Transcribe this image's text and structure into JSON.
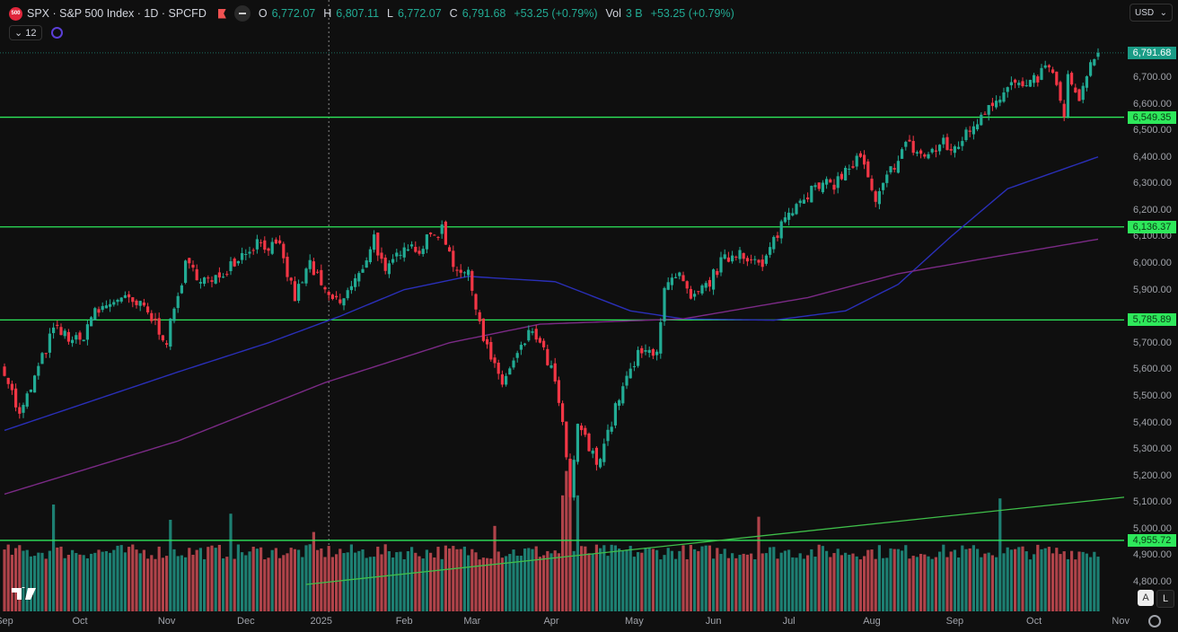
{
  "header": {
    "symbol_logo": "500",
    "title": "SPX · S&P 500 Index · 1D · SPCFD",
    "ohlc": [
      {
        "label": "O",
        "value": "6,772.07"
      },
      {
        "label": "H",
        "value": "6,807.11"
      },
      {
        "label": "L",
        "value": "6,772.07"
      },
      {
        "label": "C",
        "value": "6,791.68"
      }
    ],
    "change": "+53.25 (+0.79%)",
    "vol_label": "Vol",
    "vol_value": "3 B",
    "vol_change": "+53.25 (+0.79%)",
    "indicators_count": "12"
  },
  "currency": "USD",
  "colors": {
    "up": "#22ab94",
    "down": "#f23645",
    "level": "#2ee85b",
    "ma_fast": "#2a2fb8",
    "ma_slow": "#7b2a86",
    "trend": "#3fbf4a"
  },
  "axis_labels": [
    "6,700.00",
    "6,600.00",
    "6,500.00",
    "6,400.00",
    "6,300.00",
    "6,200.00",
    "6,100.00",
    "6,000.00",
    "5,900.00",
    "5,700.00",
    "5,600.00",
    "5,500.00",
    "5,400.00",
    "5,300.00",
    "5,200.00",
    "5,100.00",
    "5,000.00",
    "4,900.00",
    "4,800.00"
  ],
  "scale_buttons": {
    "auto": "A",
    "log": "L"
  },
  "chart_data": {
    "type": "candlestick",
    "title": "SPX · S&P 500 Index · 1D",
    "ylim": [
      4750,
      6900
    ],
    "y_ticks": [
      4800,
      4900,
      5000,
      5100,
      5200,
      5300,
      5400,
      5500,
      5600,
      5700,
      5900,
      6000,
      6100,
      6200,
      6300,
      6400,
      6500,
      6600,
      6700
    ],
    "x_range_days": [
      0,
      300
    ],
    "month_ticks": [
      {
        "label": "Sep",
        "day": 0
      },
      {
        "label": "Oct",
        "day": 20
      },
      {
        "label": "Nov",
        "day": 43
      },
      {
        "label": "Dec",
        "day": 64
      },
      {
        "label": "2025",
        "day": 84
      },
      {
        "label": "Feb",
        "day": 106
      },
      {
        "label": "Mar",
        "day": 124
      },
      {
        "label": "Apr",
        "day": 145
      },
      {
        "label": "May",
        "day": 167
      },
      {
        "label": "Jun",
        "day": 188
      },
      {
        "label": "Jul",
        "day": 208
      },
      {
        "label": "Aug",
        "day": 230
      },
      {
        "label": "Sep",
        "day": 252
      },
      {
        "label": "Oct",
        "day": 273
      },
      {
        "label": "Nov",
        "day": 296
      }
    ],
    "close_keypoints": [
      [
        0,
        5600
      ],
      [
        4,
        5420
      ],
      [
        13,
        5750
      ],
      [
        20,
        5700
      ],
      [
        23,
        5800
      ],
      [
        30,
        5870
      ],
      [
        37,
        5830
      ],
      [
        43,
        5710
      ],
      [
        48,
        5990
      ],
      [
        55,
        5920
      ],
      [
        60,
        6000
      ],
      [
        67,
        6080
      ],
      [
        73,
        6050
      ],
      [
        77,
        5870
      ],
      [
        81,
        6000
      ],
      [
        85,
        5880
      ],
      [
        89,
        5850
      ],
      [
        94,
        5950
      ],
      [
        98,
        6100
      ],
      [
        101,
        5950
      ],
      [
        106,
        6080
      ],
      [
        110,
        6050
      ],
      [
        113,
        6100
      ],
      [
        116,
        6130
      ],
      [
        119,
        6000
      ],
      [
        123,
        5950
      ],
      [
        125,
        5850
      ],
      [
        127,
        5720
      ],
      [
        130,
        5600
      ],
      [
        132,
        5550
      ],
      [
        136,
        5650
      ],
      [
        140,
        5750
      ],
      [
        145,
        5600
      ],
      [
        148,
        5400
      ],
      [
        150,
        5100
      ],
      [
        152,
        5400
      ],
      [
        155,
        5300
      ],
      [
        157,
        5250
      ],
      [
        161,
        5400
      ],
      [
        163,
        5500
      ],
      [
        168,
        5650
      ],
      [
        173,
        5680
      ],
      [
        175,
        5900
      ],
      [
        179,
        5950
      ],
      [
        182,
        5850
      ],
      [
        187,
        5930
      ],
      [
        190,
        6000
      ],
      [
        195,
        6050
      ],
      [
        201,
        5980
      ],
      [
        203,
        6050
      ],
      [
        206,
        6150
      ],
      [
        211,
        6250
      ],
      [
        215,
        6280
      ],
      [
        220,
        6300
      ],
      [
        227,
        6400
      ],
      [
        231,
        6220
      ],
      [
        235,
        6350
      ],
      [
        239,
        6450
      ],
      [
        244,
        6400
      ],
      [
        249,
        6450
      ],
      [
        251,
        6420
      ],
      [
        256,
        6500
      ],
      [
        261,
        6600
      ],
      [
        268,
        6680
      ],
      [
        271,
        6650
      ],
      [
        277,
        6750
      ],
      [
        281,
        6560
      ],
      [
        282,
        6700
      ],
      [
        285,
        6600
      ],
      [
        288,
        6750
      ],
      [
        290,
        6791.68
      ]
    ],
    "moving_averages": [
      {
        "name": "MA fast",
        "points": [
          [
            0,
            5370
          ],
          [
            23,
            5480
          ],
          [
            46,
            5590
          ],
          [
            70,
            5700
          ],
          [
            89,
            5800
          ],
          [
            106,
            5900
          ],
          [
            123,
            5950
          ],
          [
            146,
            5930
          ],
          [
            166,
            5820
          ],
          [
            180,
            5790
          ],
          [
            204,
            5785
          ],
          [
            223,
            5820
          ],
          [
            237,
            5920
          ],
          [
            251,
            6100
          ],
          [
            266,
            6280
          ],
          [
            290,
            6400
          ]
        ]
      },
      {
        "name": "MA slow",
        "points": [
          [
            0,
            5130
          ],
          [
            46,
            5330
          ],
          [
            85,
            5550
          ],
          [
            118,
            5700
          ],
          [
            142,
            5770
          ],
          [
            180,
            5790
          ],
          [
            213,
            5870
          ],
          [
            237,
            5960
          ],
          [
            261,
            6020
          ],
          [
            290,
            6090
          ]
        ]
      }
    ],
    "horizontal_levels": [
      {
        "value": 6549.35,
        "label": "6,549.35"
      },
      {
        "value": 6136.37,
        "label": "6,136.37"
      },
      {
        "value": 5785.89,
        "label": "5,785.89"
      },
      {
        "value": 4955.72,
        "label": "4,955.72"
      }
    ],
    "last_price": {
      "value": 6791.68,
      "label": "6,791.68"
    },
    "trendline": [
      [
        80,
        4790
      ],
      [
        298,
        5120
      ]
    ],
    "crosshair_day": 86,
    "volume_spikes": [
      [
        13,
        1.75
      ],
      [
        44,
        1.5
      ],
      [
        60,
        1.6
      ],
      [
        82,
        1.3
      ],
      [
        130,
        1.4
      ],
      [
        148,
        1.9
      ],
      [
        149,
        2.3
      ],
      [
        150,
        2.5
      ],
      [
        152,
        1.9
      ],
      [
        200,
        1.55
      ],
      [
        264,
        1.85
      ]
    ]
  }
}
